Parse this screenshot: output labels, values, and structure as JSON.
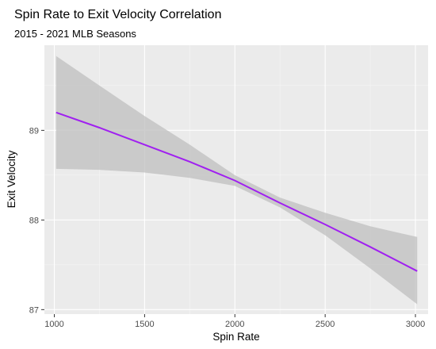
{
  "chart_data": {
    "type": "line",
    "title": "Spin Rate to Exit Velocity Correlation",
    "subtitle": "2015 - 2021 MLB Seasons",
    "xlabel": "Spin Rate",
    "ylabel": "Exit Velocity",
    "xlim": [
      945,
      3070
    ],
    "ylim": [
      86.95,
      89.95
    ],
    "x_ticks": [
      1000,
      1500,
      2000,
      2500,
      3000
    ],
    "y_ticks": [
      87,
      88,
      89
    ],
    "grid": true,
    "panel_background": "#ebebeb",
    "series": [
      {
        "x": [
          1010,
          1250,
          1500,
          1750,
          2000,
          2250,
          2500,
          2750,
          3010
        ],
        "y": [
          89.2,
          89.03,
          88.84,
          88.65,
          88.44,
          88.19,
          87.95,
          87.7,
          87.43
        ],
        "ci_lower": [
          88.57,
          88.56,
          88.53,
          88.47,
          88.38,
          88.14,
          87.83,
          87.46,
          87.06
        ],
        "ci_upper": [
          89.83,
          89.5,
          89.16,
          88.84,
          88.5,
          88.25,
          88.08,
          87.93,
          87.81
        ],
        "color": "#a020f0"
      }
    ],
    "ribbon_color": "#bfbfbf"
  }
}
